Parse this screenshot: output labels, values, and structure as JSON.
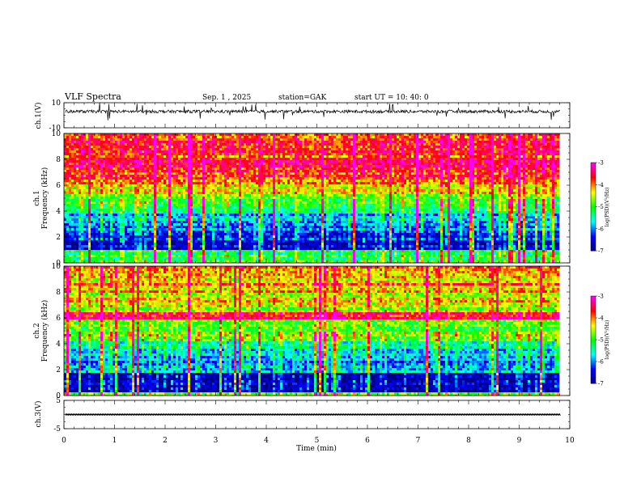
{
  "header": {
    "title": "VLF  Spectra",
    "date": "Sep. 1  , 2025",
    "station": "station=GAK",
    "start": "start  UT =    10: 40: 0"
  },
  "chart_data": [
    {
      "type": "line",
      "name": "ch1-waveform",
      "ylabel": "ch.1(V)",
      "ylim": [
        -10,
        10
      ],
      "yticks": [
        "10",
        "-10"
      ],
      "x_range_min": [
        0,
        9.8
      ],
      "description_values": {
        "baseline": 3,
        "noise_amplitude": 1.2
      }
    },
    {
      "type": "heatmap",
      "name": "ch1-spectrogram",
      "ylabel": "ch.1",
      "ylabel2": "Frequency  (kHz)",
      "ylim": [
        0,
        10
      ],
      "yticks": [
        "0",
        "2",
        "4",
        "6",
        "8",
        "10"
      ],
      "colorbar": {
        "label": "log(PSD)(V²/Hz)",
        "range": [
          -7,
          -3
        ],
        "ticks": [
          "-3",
          "-4",
          "-5",
          "-6",
          "-7"
        ]
      }
    },
    {
      "type": "heatmap",
      "name": "ch2-spectrogram",
      "ylabel": "ch.2",
      "ylabel2": "Frequency  (kHz)",
      "ylim": [
        0,
        10
      ],
      "yticks": [
        "0",
        "2",
        "4",
        "6",
        "8",
        "10"
      ],
      "colorbar": {
        "label": "log(PSD)(V²/Hz)",
        "range": [
          -7,
          -3
        ],
        "ticks": [
          "-3",
          "-4",
          "-5",
          "-6",
          "-7"
        ]
      }
    },
    {
      "type": "line",
      "name": "ch3-waveform",
      "ylabel": "ch.3(V)",
      "ylim": [
        -5,
        5
      ],
      "yticks": [
        "5",
        "-5"
      ],
      "constant_value": 0
    }
  ],
  "xaxis": {
    "label": "Time  (min)",
    "range": [
      0,
      10
    ],
    "ticks": [
      "0",
      "1",
      "2",
      "3",
      "4",
      "5",
      "6",
      "7",
      "8",
      "9",
      "10"
    ]
  },
  "colors": {
    "colormap": [
      "#00007f",
      "#0000ff",
      "#00ffff",
      "#00ff00",
      "#ffff00",
      "#ff0000",
      "#ff00ff",
      "#ffffff"
    ]
  }
}
